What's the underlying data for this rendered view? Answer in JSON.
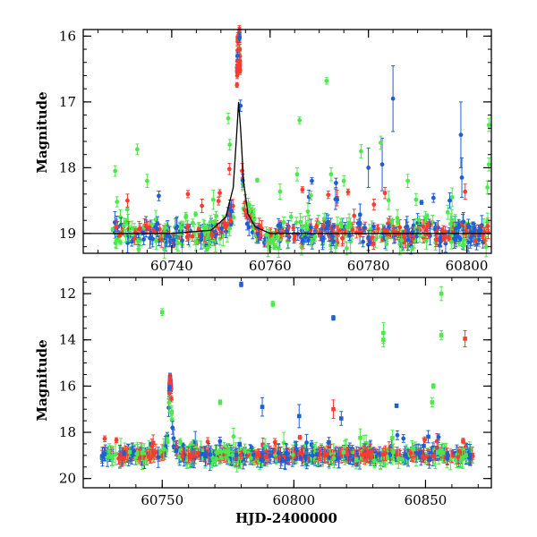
{
  "chart_data": [
    {
      "type": "scatter",
      "xlabel": "",
      "ylabel": "Magnitude",
      "xlim": [
        60722,
        60805
      ],
      "ylim": [
        19.3,
        15.9
      ],
      "y_inverted": true,
      "x_ticks": [
        60740,
        60760,
        60780,
        60800
      ],
      "y_ticks": [
        16,
        17,
        18,
        19
      ],
      "series_colors": {
        "red": "#ff3b2f",
        "blue": "#1f5fd6",
        "green": "#4de84d",
        "model": "#000000"
      },
      "model_curve": {
        "x": [
          60722,
          60740,
          60748,
          60751,
          60752.5,
          60753.2,
          60753.6,
          60754.0,
          60754.6,
          60755.5,
          60757,
          60760,
          60805
        ],
        "y": [
          19.0,
          19.0,
          18.95,
          18.75,
          18.3,
          17.5,
          17.0,
          17.4,
          18.2,
          18.7,
          18.9,
          19.0,
          19.0
        ]
      },
      "outliers": [
        {
          "color": "green",
          "x": 60728.5,
          "y": 18.05,
          "err": 0.08
        },
        {
          "color": "green",
          "x": 60733,
          "y": 17.72,
          "err": 0.08
        },
        {
          "color": "green",
          "x": 60735,
          "y": 18.2,
          "err": 0.1
        },
        {
          "color": "red",
          "x": 60731,
          "y": 18.5,
          "err": 0.1
        },
        {
          "color": "green",
          "x": 60751.5,
          "y": 17.25,
          "err": 0.08
        },
        {
          "color": "green",
          "x": 60751.8,
          "y": 17.65,
          "err": 0.08
        },
        {
          "color": "green",
          "x": 60771.5,
          "y": 16.68,
          "err": 0.05
        },
        {
          "color": "green",
          "x": 60766,
          "y": 17.28,
          "err": 0.05
        },
        {
          "color": "green",
          "x": 60765.5,
          "y": 18.1,
          "err": 0.1
        },
        {
          "color": "blue",
          "x": 60768.5,
          "y": 18.2,
          "err": 0.05
        },
        {
          "color": "green",
          "x": 60775,
          "y": 18.2,
          "err": 0.08
        },
        {
          "color": "blue",
          "x": 60785,
          "y": 16.95,
          "err": 0.5
        },
        {
          "color": "blue",
          "x": 60782.8,
          "y": 17.95,
          "err": 0.4
        },
        {
          "color": "blue",
          "x": 60780,
          "y": 18.0,
          "err": 0.3
        },
        {
          "color": "green",
          "x": 60778.5,
          "y": 17.75,
          "err": 0.1
        },
        {
          "color": "green",
          "x": 60782.5,
          "y": 17.62,
          "err": 0.1
        },
        {
          "color": "green",
          "x": 60788,
          "y": 18.2,
          "err": 0.1
        },
        {
          "color": "blue",
          "x": 60798.8,
          "y": 17.5,
          "err": 0.5
        },
        {
          "color": "blue",
          "x": 60799,
          "y": 18.15,
          "err": 0.3
        },
        {
          "color": "green",
          "x": 60804.5,
          "y": 17.35,
          "err": 0.1
        },
        {
          "color": "green",
          "x": 60804.5,
          "y": 17.95,
          "err": 0.1
        },
        {
          "color": "green",
          "x": 60804.2,
          "y": 18.3,
          "err": 0.1
        }
      ]
    },
    {
      "type": "scatter",
      "xlabel": "HJD-2400000",
      "ylabel": "Magnitude",
      "xlim": [
        60720,
        60875
      ],
      "ylim": [
        20.4,
        11.3
      ],
      "y_inverted": true,
      "x_ticks": [
        60750,
        60800,
        60850
      ],
      "y_ticks": [
        12,
        14,
        16,
        18,
        20
      ],
      "series_colors": {
        "red": "#ff3b2f",
        "blue": "#1f5fd6",
        "green": "#4de84d"
      },
      "outliers": [
        {
          "color": "blue",
          "x": 60780,
          "y": 11.6,
          "err": 0.1
        },
        {
          "color": "green",
          "x": 60750,
          "y": 12.8,
          "err": 0.15
        },
        {
          "color": "green",
          "x": 60792,
          "y": 12.45,
          "err": 0.12
        },
        {
          "color": "blue",
          "x": 60815,
          "y": 13.05,
          "err": 0.1
        },
        {
          "color": "green",
          "x": 60834,
          "y": 13.7,
          "err": 0.45
        },
        {
          "color": "green",
          "x": 60834,
          "y": 14.0,
          "err": 0.3
        },
        {
          "color": "green",
          "x": 60856,
          "y": 12.0,
          "err": 0.3
        },
        {
          "color": "green",
          "x": 60856,
          "y": 13.8,
          "err": 0.2
        },
        {
          "color": "red",
          "x": 60865,
          "y": 13.95,
          "err": 0.35
        },
        {
          "color": "green",
          "x": 60853,
          "y": 16.0,
          "err": 0.1
        },
        {
          "color": "green",
          "x": 60852.5,
          "y": 16.7,
          "err": 0.2
        },
        {
          "color": "blue",
          "x": 60839,
          "y": 16.85,
          "err": 0.08
        },
        {
          "color": "blue",
          "x": 60788,
          "y": 16.9,
          "err": 0.4
        },
        {
          "color": "green",
          "x": 60772,
          "y": 16.7,
          "err": 0.1
        },
        {
          "color": "blue",
          "x": 60802,
          "y": 17.3,
          "err": 0.5
        },
        {
          "color": "red",
          "x": 60815,
          "y": 17.0,
          "err": 0.4
        },
        {
          "color": "blue",
          "x": 60818,
          "y": 17.4,
          "err": 0.3
        }
      ]
    }
  ]
}
